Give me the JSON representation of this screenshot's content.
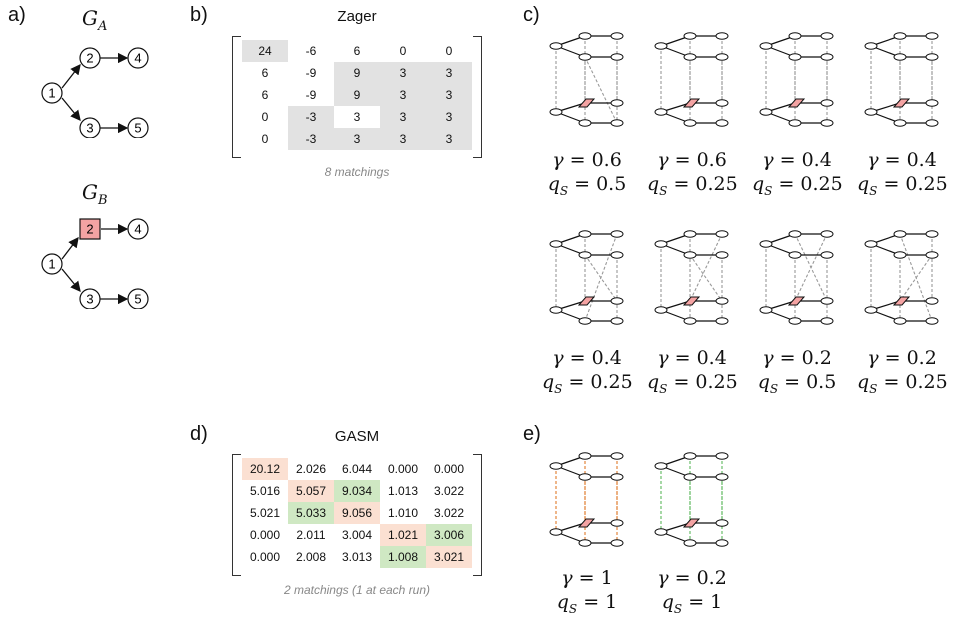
{
  "panels": {
    "a": {
      "label": "a)",
      "graph_a": {
        "title_base": "G",
        "title_sub": "A",
        "nodes": [
          "1",
          "2",
          "3",
          "4",
          "5"
        ]
      },
      "graph_b": {
        "title_base": "G",
        "title_sub": "B",
        "nodes": [
          "1",
          "2",
          "3",
          "4",
          "5"
        ],
        "highlight_node": "2",
        "highlight_color": "#f4a3a3"
      }
    },
    "b": {
      "label": "b)",
      "title": "Zager",
      "caption": "8 matchings",
      "highlight_color": "#e2e2e2",
      "rows": [
        [
          "24",
          "-6",
          "6",
          "0",
          "0"
        ],
        [
          "6",
          "-9",
          "9",
          "3",
          "3"
        ],
        [
          "6",
          "-9",
          "9",
          "3",
          "3"
        ],
        [
          "0",
          "-3",
          "3",
          "3",
          "3"
        ],
        [
          "0",
          "-3",
          "3",
          "3",
          "3"
        ]
      ],
      "highlight": [
        [
          1,
          0,
          0,
          0,
          0
        ],
        [
          0,
          0,
          1,
          1,
          1
        ],
        [
          0,
          0,
          1,
          1,
          1
        ],
        [
          0,
          1,
          0,
          1,
          1
        ],
        [
          0,
          1,
          1,
          1,
          1
        ]
      ]
    },
    "c": {
      "label": "c)",
      "items": [
        {
          "gamma": "0.6",
          "qs": "0.5"
        },
        {
          "gamma": "0.6",
          "qs": "0.25"
        },
        {
          "gamma": "0.4",
          "qs": "0.25"
        },
        {
          "gamma": "0.4",
          "qs": "0.25"
        },
        {
          "gamma": "0.4",
          "qs": "0.25"
        },
        {
          "gamma": "0.4",
          "qs": "0.25"
        },
        {
          "gamma": "0.2",
          "qs": "0.5"
        },
        {
          "gamma": "0.2",
          "qs": "0.25"
        }
      ]
    },
    "d": {
      "label": "d)",
      "title": "GASM",
      "caption": "2 matchings (1 at each run)",
      "colors": {
        "green": "#cfe8c3",
        "orange": "#fbe0d2"
      },
      "rows": [
        [
          "20.12",
          "2.026",
          "6.044",
          "0.000",
          "0.000"
        ],
        [
          "5.016",
          "5.057",
          "9.034",
          "1.013",
          "3.022"
        ],
        [
          "5.021",
          "5.033",
          "9.056",
          "1.010",
          "3.022"
        ],
        [
          "0.000",
          "2.011",
          "3.004",
          "1.021",
          "3.006"
        ],
        [
          "0.000",
          "2.008",
          "3.013",
          "1.008",
          "3.021"
        ]
      ],
      "highlight": [
        [
          "o",
          "",
          "",
          "",
          ""
        ],
        [
          "",
          "o",
          "g",
          "",
          ""
        ],
        [
          "",
          "g",
          "o",
          "",
          ""
        ],
        [
          "",
          "",
          "",
          "o",
          "g"
        ],
        [
          "",
          "",
          "",
          "g",
          "o"
        ]
      ]
    },
    "e": {
      "label": "e)",
      "items": [
        {
          "gamma": "1",
          "qs": "1",
          "line_color": "#e07a2a"
        },
        {
          "gamma": "0.2",
          "qs": "1",
          "line_color": "#5cb85c"
        }
      ]
    }
  },
  "symbols": {
    "gamma": "γ",
    "eq": " = ",
    "q": "q",
    "s": "S"
  }
}
